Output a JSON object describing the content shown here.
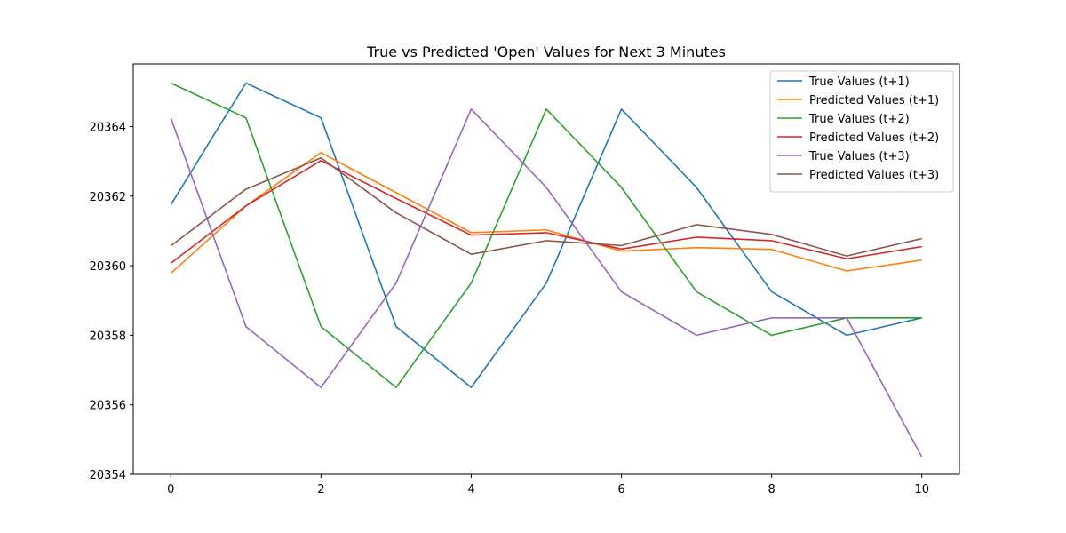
{
  "chart_data": {
    "type": "line",
    "title": "True vs Predicted 'Open' Values for Next 3 Minutes",
    "xlabel": "",
    "ylabel": "",
    "x": [
      0,
      1,
      2,
      3,
      4,
      5,
      6,
      7,
      8,
      9,
      10
    ],
    "xlim": [
      -0.5,
      10.5
    ],
    "ylim": [
      20354,
      20365.8
    ],
    "xticks": [
      0,
      2,
      4,
      6,
      8,
      10
    ],
    "yticks": [
      20354,
      20356,
      20358,
      20360,
      20362,
      20364
    ],
    "grid": false,
    "legend_position": "top-right",
    "series": [
      {
        "name": "True Values (t+1)",
        "color": "#1f77b4",
        "values": [
          20361.75,
          20365.25,
          20364.25,
          20358.25,
          20356.5,
          20359.5,
          20364.5,
          20362.25,
          20359.25,
          20358.0,
          20358.5
        ]
      },
      {
        "name": "Predicted Values (t+1)",
        "color": "#ff7f0e",
        "values": [
          20359.78,
          20361.72,
          20363.25,
          20362.1,
          20360.95,
          20361.03,
          20360.42,
          20360.52,
          20360.47,
          20359.85,
          20360.16
        ]
      },
      {
        "name": "True Values (t+2)",
        "color": "#2ca02c",
        "values": [
          20365.25,
          20364.25,
          20358.25,
          20356.5,
          20359.5,
          20364.5,
          20362.25,
          20359.25,
          20358.0,
          20358.5,
          20358.5
        ]
      },
      {
        "name": "Predicted Values (t+2)",
        "color": "#d62728",
        "values": [
          20360.07,
          20361.72,
          20363.02,
          20361.93,
          20360.88,
          20360.95,
          20360.48,
          20360.82,
          20360.72,
          20360.2,
          20360.55
        ]
      },
      {
        "name": "True Values (t+3)",
        "color": "#9467bd",
        "values": [
          20364.25,
          20358.25,
          20356.5,
          20359.5,
          20364.5,
          20362.25,
          20359.25,
          20358.0,
          20358.5,
          20358.5,
          20354.5
        ]
      },
      {
        "name": "Predicted Values (t+3)",
        "color": "#8c564b",
        "values": [
          20360.57,
          20362.2,
          20363.1,
          20361.52,
          20360.33,
          20360.72,
          20360.58,
          20361.18,
          20360.9,
          20360.28,
          20360.78
        ]
      }
    ]
  }
}
